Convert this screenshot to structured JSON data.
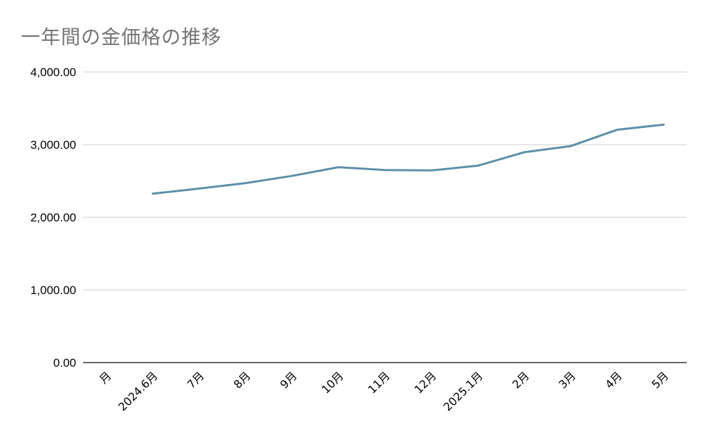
{
  "chart_data": {
    "type": "line",
    "title": "一年間の金価格の推移",
    "xlabel": "",
    "ylabel": "",
    "ylim": [
      0,
      4000
    ],
    "yticks": [
      "0.00",
      "1,000.00",
      "2,000.00",
      "3,000.00",
      "4,000.00"
    ],
    "grid": true,
    "legend": "none",
    "categories": [
      "月",
      "2024.6月",
      "7月",
      "8月",
      "9月",
      "10月",
      "11月",
      "12月",
      "2025.1月",
      "2月",
      "3月",
      "4月",
      "5月"
    ],
    "series": [
      {
        "values": [
          null,
          2325,
          2395,
          2470,
          2570,
          2690,
          2650,
          2645,
          2710,
          2895,
          2980,
          3205,
          3275
        ],
        "color": "#5b8fa8"
      }
    ]
  }
}
